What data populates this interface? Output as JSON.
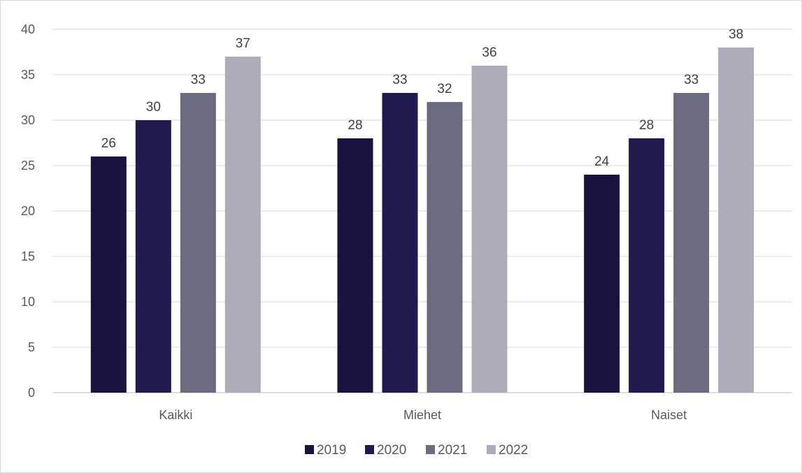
{
  "chart_data": {
    "type": "bar",
    "categories": [
      "Kaikki",
      "Miehet",
      "Naiset"
    ],
    "series": [
      {
        "name": "2019",
        "values": [
          26,
          28,
          24
        ],
        "color": "#1a1340"
      },
      {
        "name": "2020",
        "values": [
          30,
          33,
          28
        ],
        "color": "#211a4e"
      },
      {
        "name": "2021",
        "values": [
          33,
          32,
          33
        ],
        "color": "#6d6b80"
      },
      {
        "name": "2022",
        "values": [
          37,
          36,
          38
        ],
        "color": "#adacb8"
      }
    ],
    "yticks": [
      "0",
      "5",
      "10",
      "15",
      "20",
      "25",
      "30",
      "35",
      "40"
    ],
    "ylim": [
      0,
      40
    ],
    "grid": true,
    "legend": "bottom",
    "data_labels": true,
    "title": "",
    "xlabel": "",
    "ylabel": ""
  }
}
